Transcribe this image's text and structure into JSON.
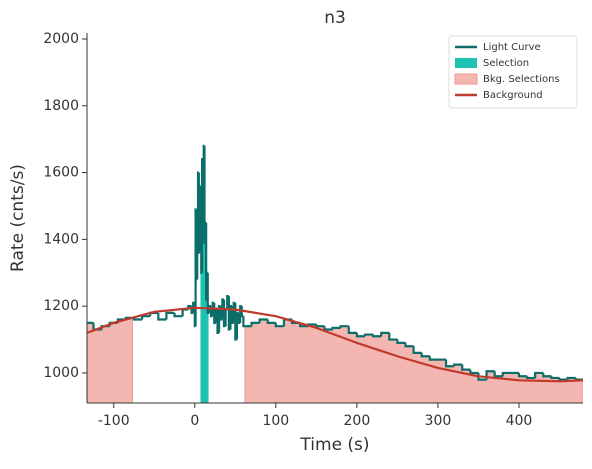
{
  "chart_data": {
    "type": "step",
    "title": "n3",
    "xlabel": "Time (s)",
    "ylabel": "Rate (cnts/s)",
    "xlim": [
      -133,
      479
    ],
    "ylim": [
      910,
      2018
    ],
    "xticks": [
      -100,
      0,
      100,
      200,
      300,
      400
    ],
    "yticks": [
      1000,
      1200,
      1400,
      1600,
      1800,
      2000
    ],
    "legend": "upper right",
    "light_curve": {
      "name": "Light Curve",
      "color": "#0b6e69",
      "x": [
        -133,
        -125,
        -115,
        -105,
        -95,
        -85,
        -75,
        -65,
        -55,
        -45,
        -35,
        -25,
        -15,
        -8,
        -4,
        -2,
        0,
        1,
        2,
        3,
        4,
        5,
        6,
        7,
        8,
        9,
        10,
        11,
        12,
        13,
        14,
        15,
        16,
        18,
        20,
        22,
        24,
        26,
        28,
        30,
        32,
        34,
        36,
        38,
        40,
        42,
        44,
        46,
        48,
        50,
        52,
        54,
        56,
        58,
        60,
        62,
        70,
        80,
        90,
        100,
        110,
        120,
        130,
        140,
        150,
        160,
        170,
        180,
        190,
        200,
        210,
        220,
        230,
        240,
        250,
        260,
        270,
        280,
        290,
        300,
        310,
        320,
        330,
        340,
        350,
        360,
        370,
        380,
        390,
        400,
        410,
        420,
        430,
        440,
        450,
        460,
        470
      ],
      "values": [
        1150,
        1130,
        1140,
        1150,
        1160,
        1165,
        1160,
        1170,
        1180,
        1160,
        1180,
        1170,
        1190,
        1200,
        1180,
        1210,
        1140,
        1490,
        1280,
        1450,
        1600,
        1360,
        1560,
        1420,
        1300,
        1640,
        1400,
        1680,
        1390,
        1450,
        1220,
        1300,
        1180,
        1200,
        1170,
        1210,
        1150,
        1190,
        1120,
        1200,
        1160,
        1220,
        1140,
        1190,
        1230,
        1130,
        1200,
        1150,
        1210,
        1100,
        1180,
        1150,
        1200,
        1170,
        1140,
        1140,
        1150,
        1160,
        1150,
        1140,
        1160,
        1150,
        1140,
        1145,
        1140,
        1130,
        1135,
        1140,
        1120,
        1110,
        1115,
        1110,
        1120,
        1100,
        1090,
        1080,
        1060,
        1050,
        1040,
        1040,
        1020,
        1025,
        1010,
        1000,
        980,
        1005,
        990,
        1000,
        1000,
        990,
        985,
        1000,
        990,
        985,
        980,
        985,
        980
      ]
    },
    "selection": {
      "name": "Selection",
      "color": "#1fc2b3",
      "range": [
        7,
        17
      ]
    },
    "bkg_selections": {
      "name": "Bkg. Selections",
      "color": "#f4b6b0",
      "ranges": [
        [
          -133,
          -77
        ],
        [
          62,
          479
        ]
      ]
    },
    "background": {
      "name": "Background",
      "color": "#c0392b",
      "x": [
        -133,
        -100,
        -50,
        0,
        50,
        100,
        150,
        200,
        250,
        300,
        350,
        400,
        450,
        479
      ],
      "values": [
        1120,
        1150,
        1183,
        1195,
        1190,
        1170,
        1135,
        1090,
        1050,
        1015,
        990,
        978,
        975,
        978
      ]
    }
  }
}
